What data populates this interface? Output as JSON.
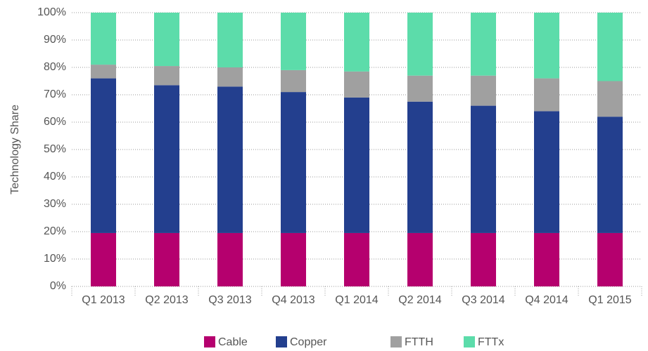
{
  "chart_data": {
    "type": "stacked_bar",
    "categories": [
      "Q1 2013",
      "Q2 2013",
      "Q3 2013",
      "Q4 2013",
      "Q1 2014",
      "Q2 2014",
      "Q3 2014",
      "Q4 2014",
      "Q1 2015"
    ],
    "series": [
      {
        "name": "Cable",
        "color": "#b5006e",
        "values": [
          19.5,
          19.5,
          19.5,
          19.5,
          19.5,
          19.5,
          19.5,
          19.5,
          19.5
        ]
      },
      {
        "name": "Copper",
        "color": "#233f8e",
        "values": [
          56.5,
          54,
          53.5,
          51.5,
          49.5,
          48,
          46.5,
          44.5,
          42.5
        ]
      },
      {
        "name": "FTTH",
        "color": "#a0a0a0",
        "values": [
          5,
          7,
          7,
          8,
          9.5,
          9.5,
          11,
          12,
          13
        ]
      },
      {
        "name": "FTTx",
        "color": "#5cdcaa",
        "values": [
          19,
          19.5,
          20,
          21,
          21.5,
          23,
          23,
          24,
          25
        ]
      }
    ],
    "ylabel": "Technology Share",
    "ylim": [
      0,
      100
    ],
    "yticks": [
      {
        "value": 0,
        "label": "0%"
      },
      {
        "value": 10,
        "label": "10%"
      },
      {
        "value": 20,
        "label": "20%"
      },
      {
        "value": 30,
        "label": "30%"
      },
      {
        "value": 40,
        "label": "40%"
      },
      {
        "value": 50,
        "label": "50%"
      },
      {
        "value": 60,
        "label": "60%"
      },
      {
        "value": 70,
        "label": "70%"
      },
      {
        "value": 80,
        "label": "80%"
      },
      {
        "value": 90,
        "label": "90%"
      },
      {
        "value": 100,
        "label": "100%"
      }
    ],
    "grid": true,
    "legend": "bottom"
  }
}
